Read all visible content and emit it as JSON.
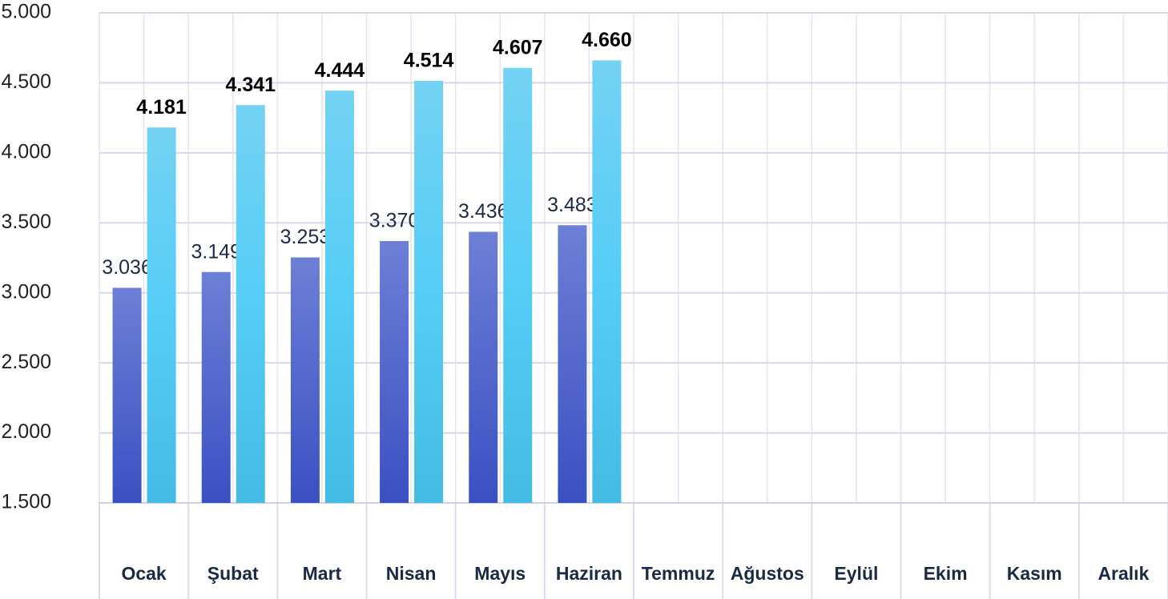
{
  "chart_data": {
    "type": "bar",
    "categories": [
      "Ocak",
      "Şubat",
      "Mart",
      "Nisan",
      "Mayıs",
      "Haziran",
      "Temmuz",
      "Ağustos",
      "Eylül",
      "Ekim",
      "Kasım",
      "Aralık"
    ],
    "series": [
      {
        "color": "#5566cc",
        "values": [
          3036,
          3149,
          3253,
          3370,
          3436,
          3483,
          null,
          null,
          null,
          null,
          null,
          null
        ],
        "value_labels": [
          "3.036",
          "3.149",
          "3.253",
          "3.370",
          "3.436",
          "3.483",
          null,
          null,
          null,
          null,
          null,
          null
        ]
      },
      {
        "color": "#55c8ee",
        "values": [
          4181,
          4341,
          4444,
          4514,
          4607,
          4660,
          null,
          null,
          null,
          null,
          null,
          null
        ],
        "value_labels": [
          "4.181",
          "4.341",
          "4.444",
          "4.514",
          "4.607",
          "4.660",
          null,
          null,
          null,
          null,
          null,
          null
        ]
      }
    ],
    "ylim": [
      1500,
      5000
    ],
    "yticks": [
      {
        "value": 1500,
        "label": "1.500"
      },
      {
        "value": 2000,
        "label": "2.000"
      },
      {
        "value": 2500,
        "label": "2.500"
      },
      {
        "value": 3000,
        "label": "3.000"
      },
      {
        "value": 3500,
        "label": "3.500"
      },
      {
        "value": 4000,
        "label": "4.000"
      },
      {
        "value": 4500,
        "label": "4.500"
      },
      {
        "value": 5000,
        "label": "5.000"
      }
    ],
    "grid": true
  }
}
